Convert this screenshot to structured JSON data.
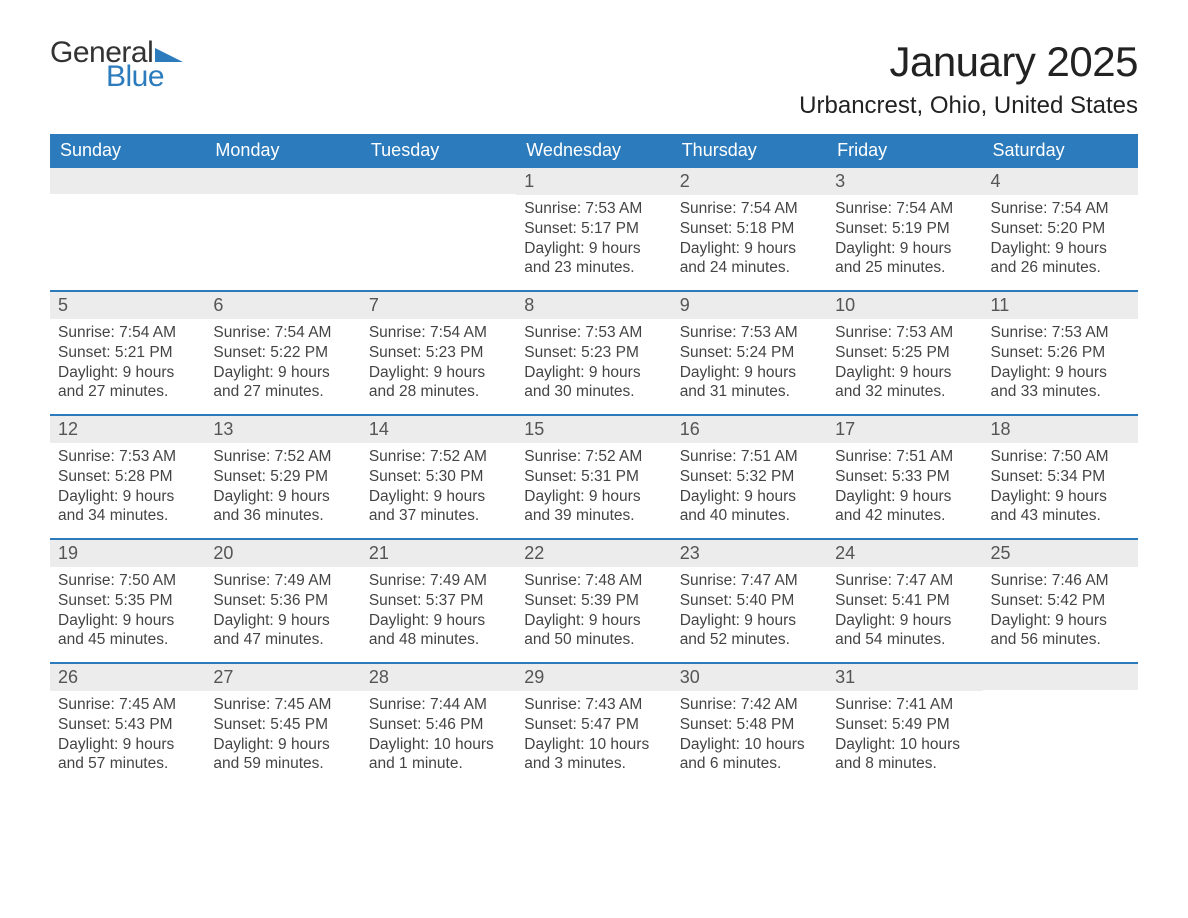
{
  "logo": {
    "text_general": "General",
    "text_blue": "Blue",
    "flag_color": "#2b7bbd"
  },
  "header": {
    "month_title": "January 2025",
    "location": "Urbancrest, Ohio, United States"
  },
  "colors": {
    "header_bg": "#2b7bbd",
    "header_text": "#ffffff",
    "daynum_bg": "#ececec",
    "daynum_text": "#555555",
    "body_text": "#444444",
    "week_border": "#2b7bbd",
    "page_bg": "#ffffff"
  },
  "weekdays": [
    "Sunday",
    "Monday",
    "Tuesday",
    "Wednesday",
    "Thursday",
    "Friday",
    "Saturday"
  ],
  "weeks": [
    [
      {
        "empty": true
      },
      {
        "empty": true
      },
      {
        "empty": true
      },
      {
        "num": "1",
        "sunrise": "Sunrise: 7:53 AM",
        "sunset": "Sunset: 5:17 PM",
        "d1": "Daylight: 9 hours",
        "d2": "and 23 minutes."
      },
      {
        "num": "2",
        "sunrise": "Sunrise: 7:54 AM",
        "sunset": "Sunset: 5:18 PM",
        "d1": "Daylight: 9 hours",
        "d2": "and 24 minutes."
      },
      {
        "num": "3",
        "sunrise": "Sunrise: 7:54 AM",
        "sunset": "Sunset: 5:19 PM",
        "d1": "Daylight: 9 hours",
        "d2": "and 25 minutes."
      },
      {
        "num": "4",
        "sunrise": "Sunrise: 7:54 AM",
        "sunset": "Sunset: 5:20 PM",
        "d1": "Daylight: 9 hours",
        "d2": "and 26 minutes."
      }
    ],
    [
      {
        "num": "5",
        "sunrise": "Sunrise: 7:54 AM",
        "sunset": "Sunset: 5:21 PM",
        "d1": "Daylight: 9 hours",
        "d2": "and 27 minutes."
      },
      {
        "num": "6",
        "sunrise": "Sunrise: 7:54 AM",
        "sunset": "Sunset: 5:22 PM",
        "d1": "Daylight: 9 hours",
        "d2": "and 27 minutes."
      },
      {
        "num": "7",
        "sunrise": "Sunrise: 7:54 AM",
        "sunset": "Sunset: 5:23 PM",
        "d1": "Daylight: 9 hours",
        "d2": "and 28 minutes."
      },
      {
        "num": "8",
        "sunrise": "Sunrise: 7:53 AM",
        "sunset": "Sunset: 5:23 PM",
        "d1": "Daylight: 9 hours",
        "d2": "and 30 minutes."
      },
      {
        "num": "9",
        "sunrise": "Sunrise: 7:53 AM",
        "sunset": "Sunset: 5:24 PM",
        "d1": "Daylight: 9 hours",
        "d2": "and 31 minutes."
      },
      {
        "num": "10",
        "sunrise": "Sunrise: 7:53 AM",
        "sunset": "Sunset: 5:25 PM",
        "d1": "Daylight: 9 hours",
        "d2": "and 32 minutes."
      },
      {
        "num": "11",
        "sunrise": "Sunrise: 7:53 AM",
        "sunset": "Sunset: 5:26 PM",
        "d1": "Daylight: 9 hours",
        "d2": "and 33 minutes."
      }
    ],
    [
      {
        "num": "12",
        "sunrise": "Sunrise: 7:53 AM",
        "sunset": "Sunset: 5:28 PM",
        "d1": "Daylight: 9 hours",
        "d2": "and 34 minutes."
      },
      {
        "num": "13",
        "sunrise": "Sunrise: 7:52 AM",
        "sunset": "Sunset: 5:29 PM",
        "d1": "Daylight: 9 hours",
        "d2": "and 36 minutes."
      },
      {
        "num": "14",
        "sunrise": "Sunrise: 7:52 AM",
        "sunset": "Sunset: 5:30 PM",
        "d1": "Daylight: 9 hours",
        "d2": "and 37 minutes."
      },
      {
        "num": "15",
        "sunrise": "Sunrise: 7:52 AM",
        "sunset": "Sunset: 5:31 PM",
        "d1": "Daylight: 9 hours",
        "d2": "and 39 minutes."
      },
      {
        "num": "16",
        "sunrise": "Sunrise: 7:51 AM",
        "sunset": "Sunset: 5:32 PM",
        "d1": "Daylight: 9 hours",
        "d2": "and 40 minutes."
      },
      {
        "num": "17",
        "sunrise": "Sunrise: 7:51 AM",
        "sunset": "Sunset: 5:33 PM",
        "d1": "Daylight: 9 hours",
        "d2": "and 42 minutes."
      },
      {
        "num": "18",
        "sunrise": "Sunrise: 7:50 AM",
        "sunset": "Sunset: 5:34 PM",
        "d1": "Daylight: 9 hours",
        "d2": "and 43 minutes."
      }
    ],
    [
      {
        "num": "19",
        "sunrise": "Sunrise: 7:50 AM",
        "sunset": "Sunset: 5:35 PM",
        "d1": "Daylight: 9 hours",
        "d2": "and 45 minutes."
      },
      {
        "num": "20",
        "sunrise": "Sunrise: 7:49 AM",
        "sunset": "Sunset: 5:36 PM",
        "d1": "Daylight: 9 hours",
        "d2": "and 47 minutes."
      },
      {
        "num": "21",
        "sunrise": "Sunrise: 7:49 AM",
        "sunset": "Sunset: 5:37 PM",
        "d1": "Daylight: 9 hours",
        "d2": "and 48 minutes."
      },
      {
        "num": "22",
        "sunrise": "Sunrise: 7:48 AM",
        "sunset": "Sunset: 5:39 PM",
        "d1": "Daylight: 9 hours",
        "d2": "and 50 minutes."
      },
      {
        "num": "23",
        "sunrise": "Sunrise: 7:47 AM",
        "sunset": "Sunset: 5:40 PM",
        "d1": "Daylight: 9 hours",
        "d2": "and 52 minutes."
      },
      {
        "num": "24",
        "sunrise": "Sunrise: 7:47 AM",
        "sunset": "Sunset: 5:41 PM",
        "d1": "Daylight: 9 hours",
        "d2": "and 54 minutes."
      },
      {
        "num": "25",
        "sunrise": "Sunrise: 7:46 AM",
        "sunset": "Sunset: 5:42 PM",
        "d1": "Daylight: 9 hours",
        "d2": "and 56 minutes."
      }
    ],
    [
      {
        "num": "26",
        "sunrise": "Sunrise: 7:45 AM",
        "sunset": "Sunset: 5:43 PM",
        "d1": "Daylight: 9 hours",
        "d2": "and 57 minutes."
      },
      {
        "num": "27",
        "sunrise": "Sunrise: 7:45 AM",
        "sunset": "Sunset: 5:45 PM",
        "d1": "Daylight: 9 hours",
        "d2": "and 59 minutes."
      },
      {
        "num": "28",
        "sunrise": "Sunrise: 7:44 AM",
        "sunset": "Sunset: 5:46 PM",
        "d1": "Daylight: 10 hours",
        "d2": "and 1 minute."
      },
      {
        "num": "29",
        "sunrise": "Sunrise: 7:43 AM",
        "sunset": "Sunset: 5:47 PM",
        "d1": "Daylight: 10 hours",
        "d2": "and 3 minutes."
      },
      {
        "num": "30",
        "sunrise": "Sunrise: 7:42 AM",
        "sunset": "Sunset: 5:48 PM",
        "d1": "Daylight: 10 hours",
        "d2": "and 6 minutes."
      },
      {
        "num": "31",
        "sunrise": "Sunrise: 7:41 AM",
        "sunset": "Sunset: 5:49 PM",
        "d1": "Daylight: 10 hours",
        "d2": "and 8 minutes."
      },
      {
        "empty": true
      }
    ]
  ]
}
